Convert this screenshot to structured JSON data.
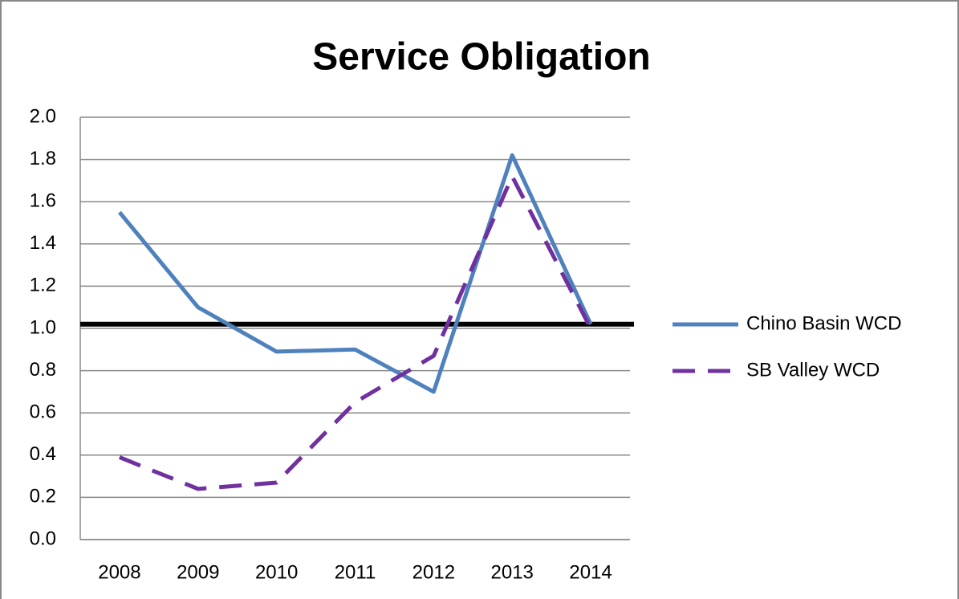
{
  "chart_data": {
    "type": "line",
    "title": "Service Obligation",
    "categories": [
      "2008",
      "2009",
      "2010",
      "2011",
      "2012",
      "2013",
      "2014"
    ],
    "series": [
      {
        "name": "Chino Basin WCD",
        "color": "#4f81bd",
        "dash": false,
        "values": [
          1.55,
          1.1,
          0.89,
          0.9,
          0.7,
          1.82,
          1.02
        ]
      },
      {
        "name": "SB Valley WCD",
        "color": "#7030a0",
        "dash": true,
        "values": [
          0.39,
          0.24,
          0.27,
          0.65,
          0.87,
          1.72,
          1.0
        ]
      }
    ],
    "reference_line": {
      "value": 1.02,
      "color": "#000000"
    },
    "ylim": [
      0,
      2
    ],
    "yticks": [
      {
        "value": 0,
        "label": "0.0"
      },
      0.2,
      0.4,
      0.6,
      0.8,
      {
        "value": 1,
        "label": "1.0"
      },
      1.2,
      1.4,
      1.6,
      1.8,
      {
        "value": 2,
        "label": "2.0"
      }
    ],
    "grid": true,
    "legend": "right"
  }
}
